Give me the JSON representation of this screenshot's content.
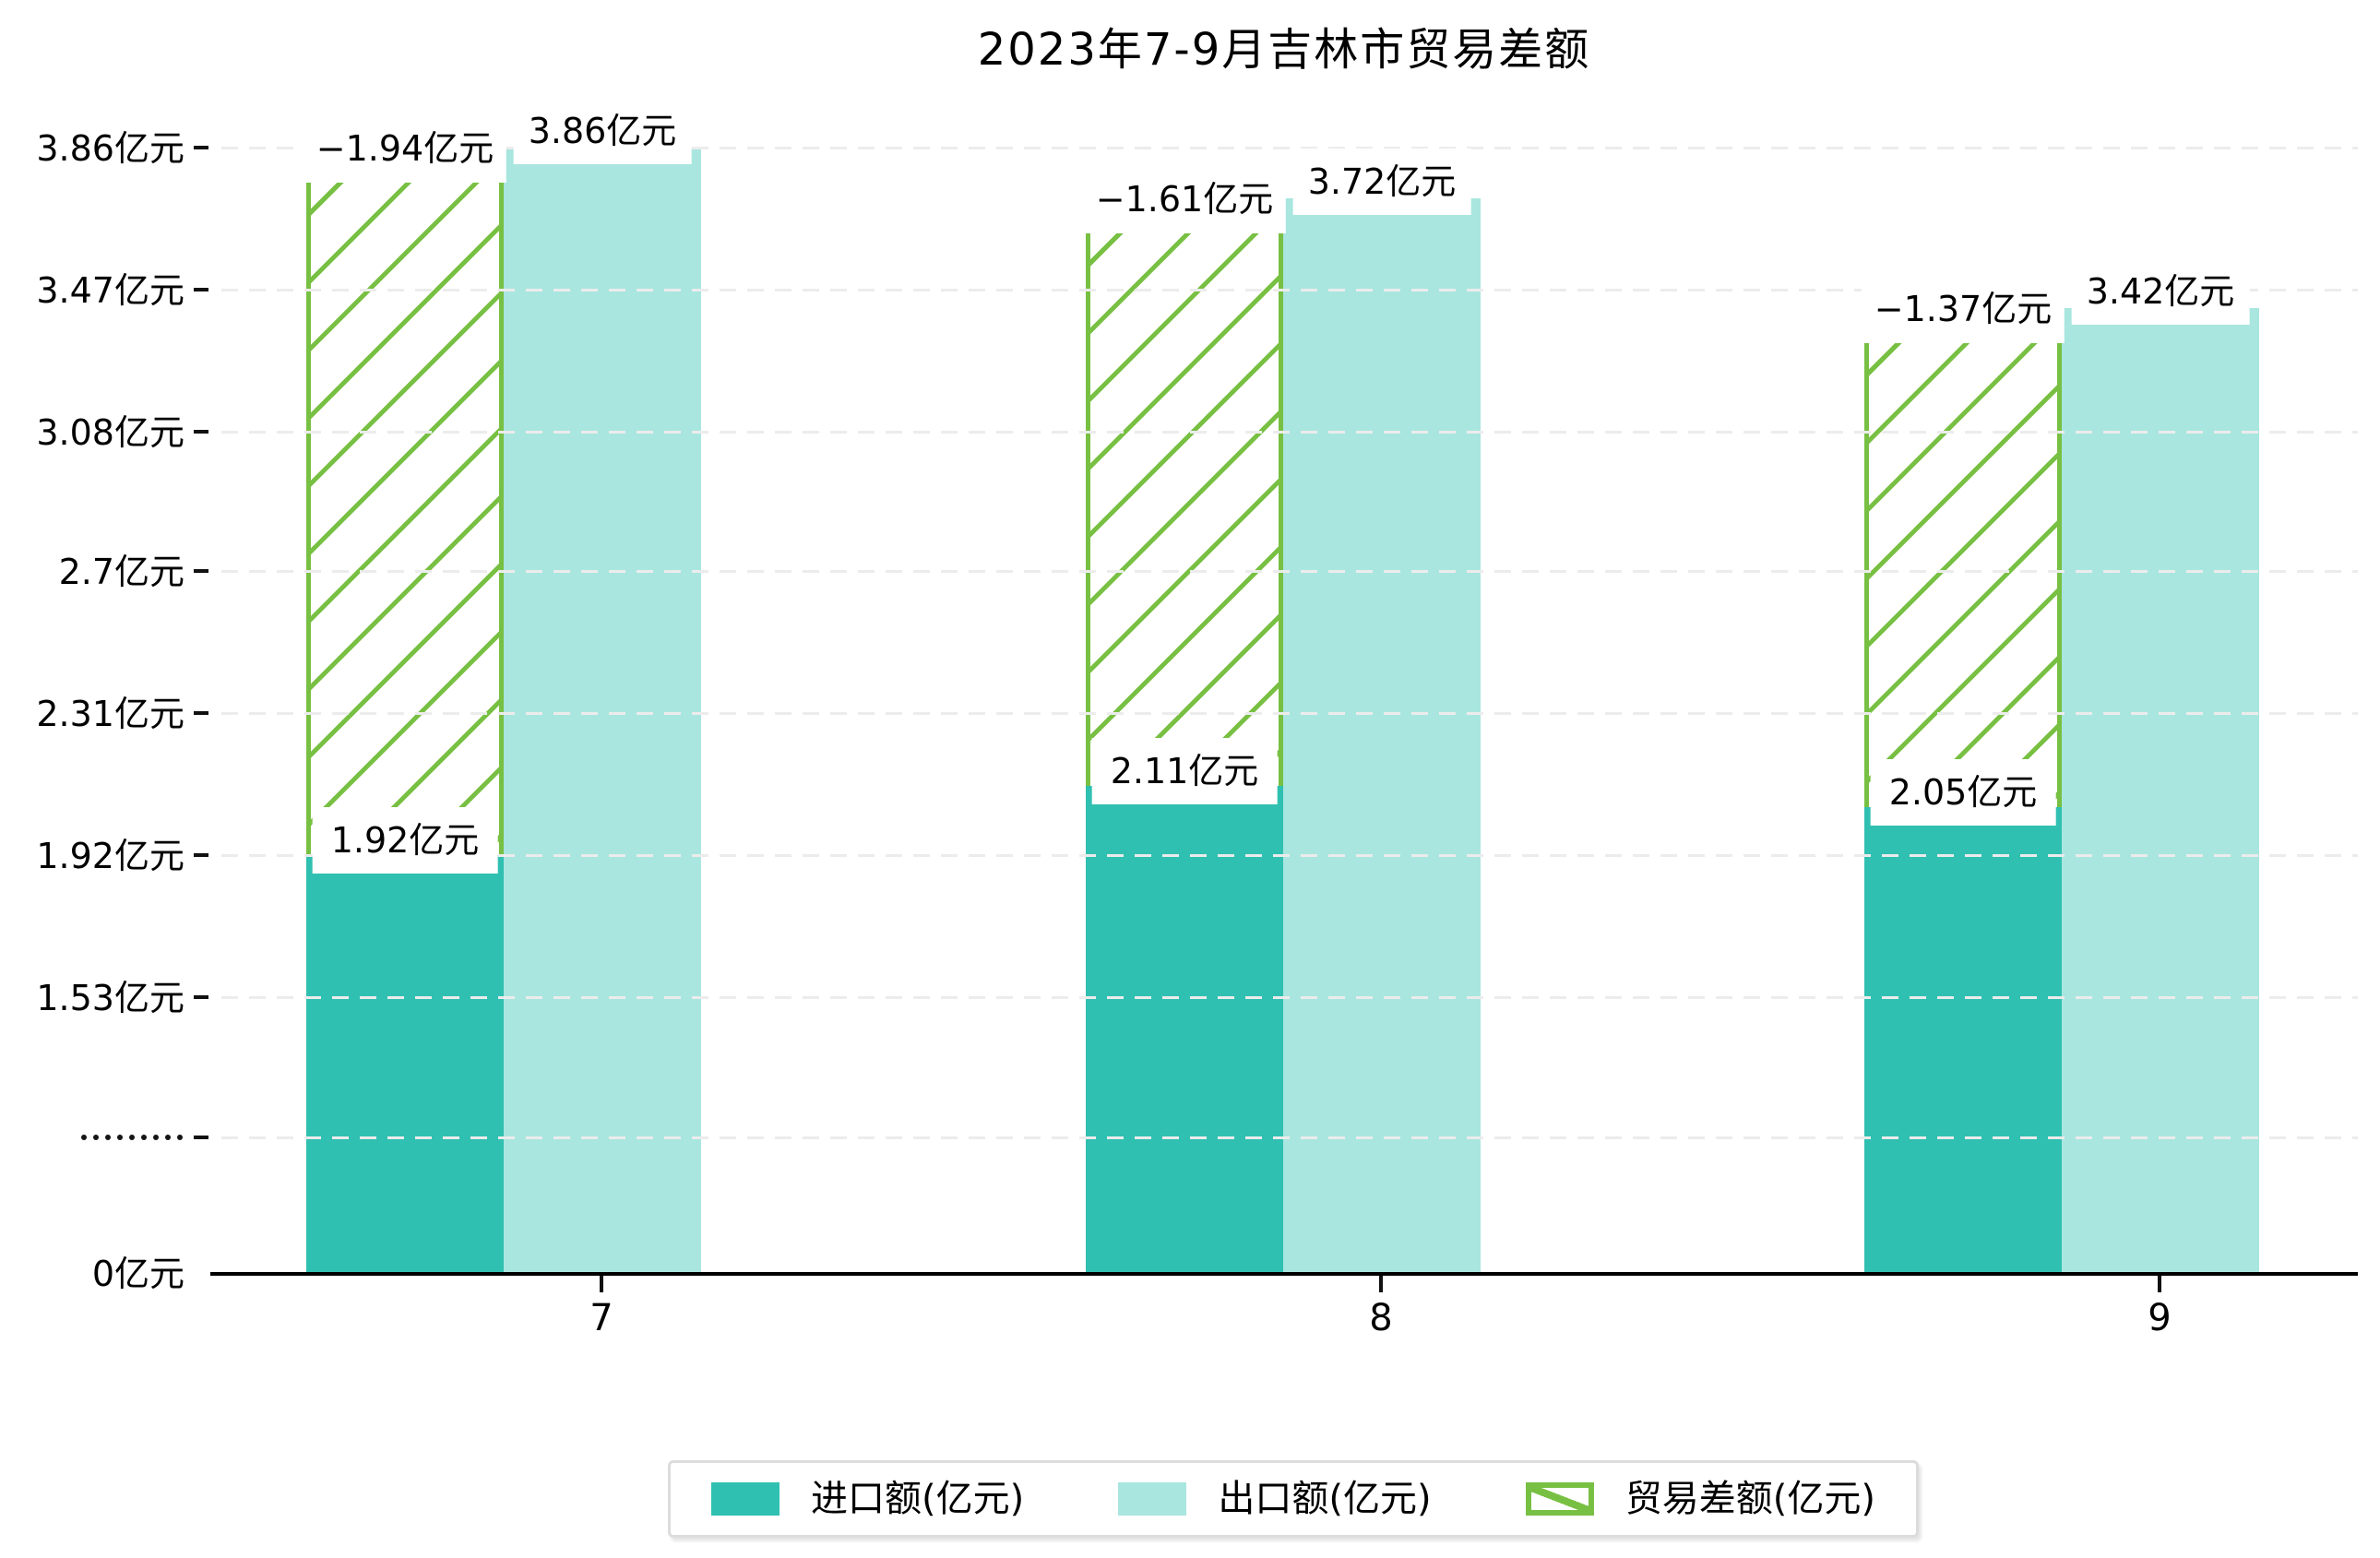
{
  "title": "2023年7-9月吉林市贸易差额",
  "colors": {
    "import": "#30c0b1",
    "export": "#a9e6df",
    "balance": "#78c043",
    "grid": "#ececec",
    "axis": "#000000",
    "legend_border": "#dcdcdc",
    "label_bg": "#ffffff"
  },
  "y_axis": {
    "tick_labels": [
      "3.86亿元",
      "3.47亿元",
      "3.08亿元",
      "2.7亿元",
      "2.31亿元",
      "1.92亿元",
      "1.53亿元"
    ],
    "tick_values": [
      3.86,
      3.47,
      3.08,
      2.7,
      2.31,
      1.92,
      1.53
    ],
    "break_symbol": "·········",
    "zero_label": "0亿元"
  },
  "x_axis": {
    "categories": [
      "7",
      "8",
      "9"
    ]
  },
  "legend": {
    "items": [
      {
        "label": "进口额(亿元)",
        "swatch": "import-solid"
      },
      {
        "label": "出口额(亿元)",
        "swatch": "export-solid"
      },
      {
        "label": "贸易差额(亿元)",
        "swatch": "balance-hatched"
      }
    ]
  },
  "chart_data": {
    "type": "bar",
    "title": "2023年7-9月吉林市贸易差额",
    "categories": [
      "7",
      "8",
      "9"
    ],
    "series": [
      {
        "name": "进口额(亿元)",
        "values": [
          1.92,
          2.11,
          2.05
        ],
        "labels": [
          "1.92亿元",
          "2.11亿元",
          "2.05亿元"
        ],
        "color": "#30c0b1",
        "style": "solid"
      },
      {
        "name": "出口额(亿元)",
        "values": [
          3.86,
          3.72,
          3.42
        ],
        "labels": [
          "3.86亿元",
          "3.72亿元",
          "3.42亿元"
        ],
        "color": "#a9e6df",
        "style": "solid"
      },
      {
        "name": "贸易差额(亿元)",
        "values": [
          -1.94,
          -1.61,
          -1.37
        ],
        "labels": [
          "−1.94亿元",
          "−1.61亿元",
          "−1.37亿元"
        ],
        "color": "#78c043",
        "style": "hatched-outline",
        "render": "stacked-on-import-span-to-export"
      }
    ],
    "ytick_labels_bottom_to_top": [
      "0亿元",
      "·········",
      "1.53亿元",
      "1.92亿元",
      "2.31亿元",
      "2.7亿元",
      "3.08亿元",
      "3.47亿元",
      "3.86亿元"
    ],
    "axis_break": true,
    "xlabel": "",
    "ylabel": "",
    "grid": true,
    "legend_position": "bottom"
  }
}
